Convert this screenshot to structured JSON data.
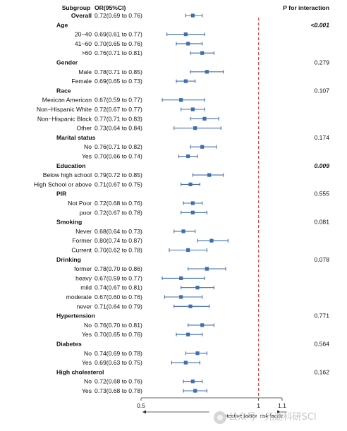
{
  "chart_data": {
    "type": "forest",
    "headers": {
      "subgroup": "Subgroup",
      "or": "OR(95%CI)",
      "p": "P for interaction"
    },
    "rows": [
      {
        "kind": "item",
        "label": "Overall",
        "bold": true,
        "or_text": "0.72(0.69 to 0.76)",
        "or": 0.72,
        "lo": 0.69,
        "hi": 0.76
      },
      {
        "kind": "group",
        "label": "Age",
        "p": "<0.001",
        "p_emph": true
      },
      {
        "kind": "item",
        "label": "20~40",
        "or_text": "0.69(0.61 to 0.77)",
        "or": 0.69,
        "lo": 0.61,
        "hi": 0.77
      },
      {
        "kind": "item",
        "label": "41~60",
        "or_text": "0.70(0.65 to 0.76)",
        "or": 0.7,
        "lo": 0.65,
        "hi": 0.76
      },
      {
        "kind": "item",
        "label": ">60",
        "or_text": "0.76(0.71 to 0.81)",
        "or": 0.76,
        "lo": 0.71,
        "hi": 0.81
      },
      {
        "kind": "group",
        "label": "Gender",
        "p": "0.279"
      },
      {
        "kind": "item",
        "label": "Male",
        "or_text": "0.78(0.71 to 0.85)",
        "or": 0.78,
        "lo": 0.71,
        "hi": 0.85
      },
      {
        "kind": "item",
        "label": "Female",
        "or_text": "0.69(0.65 to 0.73)",
        "or": 0.69,
        "lo": 0.65,
        "hi": 0.73
      },
      {
        "kind": "group",
        "label": "Race",
        "p": "0.107"
      },
      {
        "kind": "item",
        "label": "Mexican American",
        "or_text": "0.67(0.59 to 0.77)",
        "or": 0.67,
        "lo": 0.59,
        "hi": 0.77
      },
      {
        "kind": "item",
        "label": "Non−Hispanic White",
        "or_text": "0.72(0.67 to 0.77)",
        "or": 0.72,
        "lo": 0.67,
        "hi": 0.77
      },
      {
        "kind": "item",
        "label": "Non−Hispanic Black",
        "or_text": "0.77(0.71 to 0.83)",
        "or": 0.77,
        "lo": 0.71,
        "hi": 0.83
      },
      {
        "kind": "item",
        "label": "Other",
        "or_text": "0.73(0.64 to 0.84)",
        "or": 0.73,
        "lo": 0.64,
        "hi": 0.84
      },
      {
        "kind": "group",
        "label": "Marital status",
        "p": "0.174"
      },
      {
        "kind": "item",
        "label": "No",
        "or_text": "0.76(0.71 to 0.82)",
        "or": 0.76,
        "lo": 0.71,
        "hi": 0.82
      },
      {
        "kind": "item",
        "label": "Yes",
        "or_text": "0.70(0.66 to 0.74)",
        "or": 0.7,
        "lo": 0.66,
        "hi": 0.74
      },
      {
        "kind": "group",
        "label": "Education",
        "p": "0.009",
        "p_emph": true
      },
      {
        "kind": "item",
        "label": "Below high school",
        "or_text": "0.79(0.72 to 0.85)",
        "or": 0.79,
        "lo": 0.72,
        "hi": 0.85
      },
      {
        "kind": "item",
        "label": "High School or above",
        "or_text": "0.71(0.67 to 0.75)",
        "or": 0.71,
        "lo": 0.67,
        "hi": 0.75
      },
      {
        "kind": "group",
        "label": "PIR",
        "p": "0.555"
      },
      {
        "kind": "item",
        "label": "Not Poor",
        "or_text": "0.72(0.68 to 0.76)",
        "or": 0.72,
        "lo": 0.68,
        "hi": 0.76
      },
      {
        "kind": "item",
        "label": "poor",
        "or_text": "0.72(0.67 to 0.78)",
        "or": 0.72,
        "lo": 0.67,
        "hi": 0.78
      },
      {
        "kind": "group",
        "label": "Smoking",
        "p": "0.081"
      },
      {
        "kind": "item",
        "label": "Never",
        "or_text": "0.68(0.64 to 0.73)",
        "or": 0.68,
        "lo": 0.64,
        "hi": 0.73
      },
      {
        "kind": "item",
        "label": "Former",
        "or_text": "0.80(0.74 to 0.87)",
        "or": 0.8,
        "lo": 0.74,
        "hi": 0.87
      },
      {
        "kind": "item",
        "label": "Current",
        "or_text": "0.70(0.62 to 0.78)",
        "or": 0.7,
        "lo": 0.62,
        "hi": 0.78
      },
      {
        "kind": "group",
        "label": "Drinking",
        "p": "0.078"
      },
      {
        "kind": "item",
        "label": "former",
        "or_text": "0.78(0.70 to 0.86)",
        "or": 0.78,
        "lo": 0.7,
        "hi": 0.86
      },
      {
        "kind": "item",
        "label": "heavy",
        "or_text": "0.67(0.59 to 0.77)",
        "or": 0.67,
        "lo": 0.59,
        "hi": 0.77
      },
      {
        "kind": "item",
        "label": "mild",
        "or_text": "0.74(0.67 to 0.81)",
        "or": 0.74,
        "lo": 0.67,
        "hi": 0.81
      },
      {
        "kind": "item",
        "label": "moderate",
        "or_text": "0.67(0.60 to 0.76)",
        "or": 0.67,
        "lo": 0.6,
        "hi": 0.76
      },
      {
        "kind": "item",
        "label": "never",
        "or_text": "0.71(0.64 to 0.79)",
        "or": 0.71,
        "lo": 0.64,
        "hi": 0.79
      },
      {
        "kind": "group",
        "label": "Hypertension",
        "p": "0.771"
      },
      {
        "kind": "item",
        "label": "No",
        "or_text": "0.76(0.70 to 0.81)",
        "or": 0.76,
        "lo": 0.7,
        "hi": 0.81
      },
      {
        "kind": "item",
        "label": "Yes",
        "or_text": "0.70(0.65 to 0.76)",
        "or": 0.7,
        "lo": 0.65,
        "hi": 0.76
      },
      {
        "kind": "group",
        "label": "Diabetes",
        "p": "0.564"
      },
      {
        "kind": "item",
        "label": "No",
        "or_text": "0.74(0.69 to 0.78)",
        "or": 0.74,
        "lo": 0.69,
        "hi": 0.78
      },
      {
        "kind": "item",
        "label": "Yes",
        "or_text": "0.69(0.63 to 0.75)",
        "or": 0.69,
        "lo": 0.63,
        "hi": 0.75
      },
      {
        "kind": "group",
        "label": "High cholesterol",
        "p": "0.162"
      },
      {
        "kind": "item",
        "label": "No",
        "or_text": "0.72(0.68 to 0.76)",
        "or": 0.72,
        "lo": 0.68,
        "hi": 0.76
      },
      {
        "kind": "item",
        "label": "Yes",
        "or_text": "0.73(0.68 to 0.78)",
        "or": 0.73,
        "lo": 0.68,
        "hi": 0.78
      }
    ],
    "x_axis": {
      "min": 0.5,
      "max": 1.1,
      "ticks": [
        0.5,
        1,
        1.1
      ],
      "tick_labels": [
        "0.5",
        "1",
        "1.1"
      ],
      "reference": 1
    },
    "annotations": {
      "left": "protective factor",
      "right": "risk factor"
    },
    "colors": {
      "marker": "#3f6fb0",
      "reference_line": "#e0282a",
      "axis": "#333333"
    }
  },
  "watermark": {
    "text": "公众号 · 元速科研SCI"
  }
}
